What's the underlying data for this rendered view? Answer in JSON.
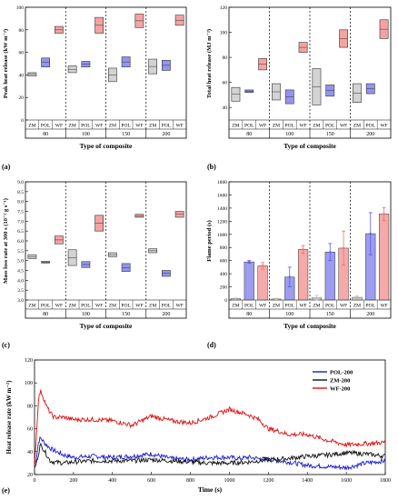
{
  "panel_labels": [
    "(a)",
    "(b)",
    "(c)",
    "(d)",
    "(e)"
  ],
  "chart_data": [
    {
      "panel": "(a)",
      "type": "box",
      "ylabel": "Peak heat release (kW m⁻²)",
      "xlabel": "Type of composite",
      "ylim": [
        0,
        100
      ],
      "yticks": [
        0,
        20,
        40,
        60,
        80,
        100
      ],
      "groups": [
        "80",
        "100",
        "150",
        "200"
      ],
      "materials": [
        "ZM",
        "POL",
        "WF"
      ],
      "colors": {
        "ZM": "#bbbbbb",
        "POL": "#5a5ae6",
        "WF": "#f07070"
      },
      "boxes": [
        [
          [
            39,
            42
          ],
          [
            47,
            55
          ],
          [
            77,
            83
          ]
        ],
        [
          [
            42,
            48
          ],
          [
            47,
            52
          ],
          [
            77,
            91
          ]
        ],
        [
          [
            34,
            46
          ],
          [
            47,
            56
          ],
          [
            82,
            94
          ]
        ],
        [
          [
            41,
            54
          ],
          [
            44,
            53
          ],
          [
            84,
            93
          ]
        ]
      ]
    },
    {
      "panel": "(b)",
      "type": "box",
      "ylabel": "Total heat release (MJ m⁻²)",
      "xlabel": "Type of composite",
      "ylim": [
        30,
        120
      ],
      "yticks": [
        40,
        60,
        80,
        100,
        120
      ],
      "groups": [
        "80",
        "100",
        "150",
        "200"
      ],
      "materials": [
        "ZM",
        "POL",
        "WF"
      ],
      "colors": {
        "ZM": "#bbbbbb",
        "POL": "#5a5ae6",
        "WF": "#f07070"
      },
      "boxes": [
        [
          [
            45,
            56
          ],
          [
            52,
            54
          ],
          [
            70,
            79
          ]
        ],
        [
          [
            46,
            59
          ],
          [
            43,
            54
          ],
          [
            84,
            92
          ]
        ],
        [
          [
            42,
            71
          ],
          [
            49,
            58
          ],
          [
            88,
            102
          ]
        ],
        [
          [
            44,
            59
          ],
          [
            51,
            59
          ],
          [
            95,
            110
          ]
        ]
      ]
    },
    {
      "panel": "(c)",
      "type": "box",
      "ylabel": "Mass loss rate at 300 s (10⁻² g s⁻¹)",
      "xlabel": "Type of composite",
      "ylim": [
        3.0,
        9.0
      ],
      "yticks": [
        3.0,
        3.5,
        4.0,
        4.5,
        5.0,
        5.5,
        6.0,
        6.5,
        7.0,
        7.5,
        8.0,
        8.5,
        9.0
      ],
      "groups": [
        "80",
        "100",
        "150",
        "200"
      ],
      "materials": [
        "ZM",
        "POL",
        "WF"
      ],
      "colors": {
        "ZM": "#bbbbbb",
        "POL": "#5a5ae6",
        "WF": "#f07070"
      },
      "boxes": [
        [
          [
            5.1,
            5.3
          ],
          [
            4.88,
            4.96
          ],
          [
            5.85,
            6.25
          ]
        ],
        [
          [
            4.75,
            5.55
          ],
          [
            4.65,
            4.95
          ],
          [
            6.5,
            7.3
          ]
        ],
        [
          [
            5.2,
            5.4
          ],
          [
            4.45,
            4.85
          ],
          [
            7.2,
            7.35
          ]
        ],
        [
          [
            5.4,
            5.6
          ],
          [
            4.2,
            4.5
          ],
          [
            7.2,
            7.5
          ]
        ]
      ]
    },
    {
      "panel": "(d)",
      "type": "bar",
      "ylabel": "Flame period (s)",
      "xlabel": "Type of composite",
      "ylim": [
        0,
        1800
      ],
      "yticks": [
        0,
        200,
        400,
        600,
        800,
        1000,
        1200,
        1400,
        1600,
        1800
      ],
      "groups": [
        "80",
        "100",
        "150",
        "200"
      ],
      "materials": [
        "ZM",
        "POL",
        "WF"
      ],
      "colors": {
        "ZM": "#bbbbbb",
        "POL": "#5a5ae6",
        "WF": "#f07070"
      },
      "values": [
        [
          20,
          580,
          520
        ],
        [
          15,
          350,
          770
        ],
        [
          30,
          730,
          790
        ],
        [
          40,
          1010,
          1310
        ]
      ],
      "errors": [
        [
          10,
          20,
          50
        ],
        [
          10,
          150,
          60
        ],
        [
          40,
          130,
          260
        ],
        [
          20,
          320,
          100
        ]
      ]
    },
    {
      "panel": "(e)",
      "type": "line",
      "ylabel": "Heat release rate (kW m⁻²)",
      "xlabel": "Time (s)",
      "xlim": [
        0,
        1800
      ],
      "ylim": [
        20,
        120
      ],
      "xticks": [
        0,
        200,
        400,
        600,
        800,
        1000,
        1200,
        1400,
        1600,
        1800
      ],
      "yticks": [
        20,
        40,
        60,
        80,
        100,
        120
      ],
      "series": [
        {
          "name": "POL-200",
          "color": "#1a1ad0",
          "x": [
            0,
            10,
            20,
            30,
            40,
            60,
            80,
            100,
            150,
            200,
            300,
            400,
            500,
            600,
            700,
            800,
            900,
            1000,
            1050,
            1100,
            1200,
            1300,
            1400,
            1500,
            1600,
            1700,
            1800
          ],
          "y": [
            28,
            35,
            48,
            52,
            50,
            46,
            43,
            41,
            37,
            35,
            36,
            35,
            36,
            38,
            34,
            33,
            35,
            35,
            34,
            35,
            33,
            31,
            28,
            27,
            26,
            30,
            32
          ]
        },
        {
          "name": "ZM-200",
          "color": "#111111",
          "x": [
            0,
            10,
            20,
            30,
            40,
            60,
            80,
            100,
            150,
            200,
            300,
            400,
            500,
            600,
            700,
            800,
            900,
            1000,
            1100,
            1200,
            1300,
            1400,
            1500,
            1600,
            1700,
            1800
          ],
          "y": [
            25,
            30,
            38,
            46,
            44,
            38,
            32,
            31,
            30,
            31,
            32,
            32,
            32,
            33,
            32,
            31,
            30,
            30,
            31,
            33,
            34,
            36,
            37,
            39,
            38,
            36
          ]
        },
        {
          "name": "WF-200",
          "color": "#dd1111",
          "x": [
            0,
            10,
            20,
            30,
            40,
            50,
            60,
            80,
            100,
            150,
            200,
            300,
            400,
            500,
            600,
            700,
            800,
            900,
            1000,
            1100,
            1150,
            1200,
            1250,
            1300,
            1400,
            1500,
            1600,
            1700,
            1800
          ],
          "y": [
            30,
            55,
            85,
            93,
            90,
            85,
            80,
            74,
            70,
            70,
            68,
            68,
            67,
            63,
            71,
            67,
            65,
            70,
            77,
            72,
            68,
            60,
            58,
            55,
            55,
            50,
            46,
            47,
            48
          ]
        }
      ]
    }
  ]
}
